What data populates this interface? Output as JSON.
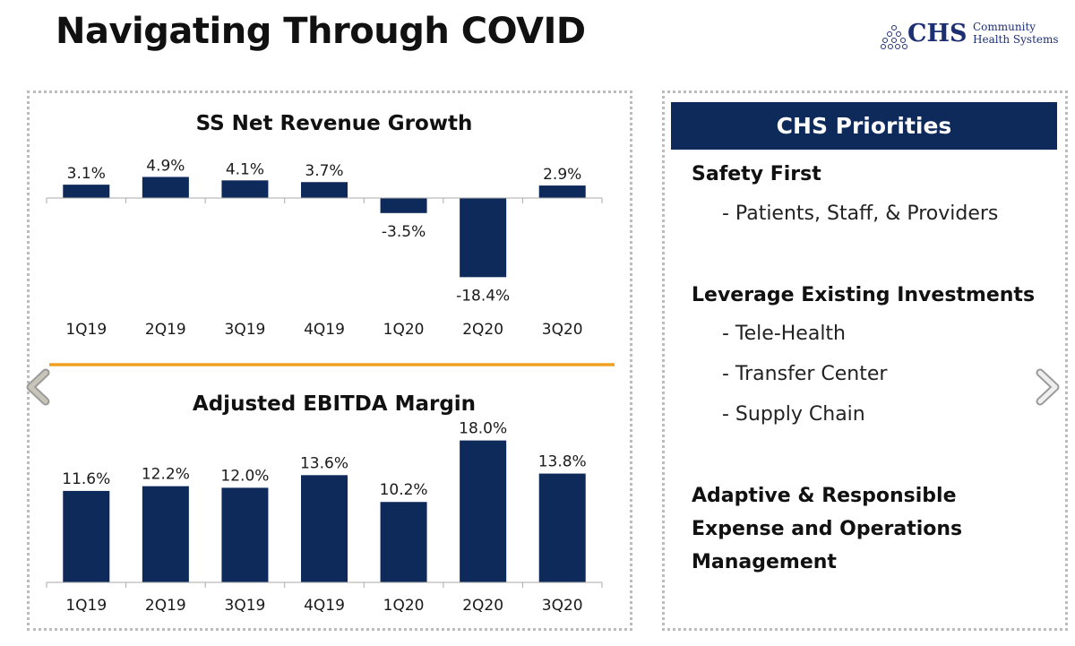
{
  "page": {
    "title": "Navigating Through COVID"
  },
  "logo": {
    "abbr": "CHS",
    "line1": "Community",
    "line2": "Health Systems"
  },
  "priorities": {
    "header": "CHS Priorities",
    "sections": [
      {
        "heading": "Safety First",
        "items": [
          "- Patients, Staff, & Providers"
        ]
      },
      {
        "heading": "Leverage Existing Investments",
        "items": [
          "- Tele-Health",
          "- Transfer Center",
          "- Supply Chain"
        ]
      },
      {
        "heading_lines": [
          "Adaptive & Responsible",
          "Expense and Operations",
          "Management"
        ],
        "items": []
      }
    ]
  },
  "colors": {
    "bar": "#0e2a5a",
    "divider": "#f0a020",
    "header_bg": "#0e2a5a"
  },
  "icons": {
    "prev": "chevron-left-icon",
    "next": "chevron-right-icon"
  },
  "chart_data": [
    {
      "type": "bar",
      "title": "SS Net Revenue Growth",
      "categories": [
        "1Q19",
        "2Q19",
        "3Q19",
        "4Q19",
        "1Q20",
        "2Q20",
        "3Q20"
      ],
      "values": [
        3.1,
        4.9,
        4.1,
        3.7,
        -3.5,
        -18.4,
        2.9
      ],
      "labels": [
        "3.1%",
        "4.9%",
        "4.1%",
        "3.7%",
        "-3.5%",
        "-18.4%",
        "2.9%"
      ],
      "unit": "%",
      "ylim": [
        -18.4,
        4.9
      ],
      "grid": false,
      "legend": "none"
    },
    {
      "type": "bar",
      "title": "Adjusted EBITDA Margin",
      "categories": [
        "1Q19",
        "2Q19",
        "3Q19",
        "4Q19",
        "1Q20",
        "2Q20",
        "3Q20"
      ],
      "values": [
        11.6,
        12.2,
        12.0,
        13.6,
        10.2,
        18.0,
        13.8
      ],
      "labels": [
        "11.6%",
        "12.2%",
        "12.0%",
        "13.6%",
        "10.2%",
        "18.0%",
        "13.8%"
      ],
      "unit": "%",
      "ylim": [
        0,
        18.0
      ],
      "grid": false,
      "legend": "none"
    }
  ]
}
